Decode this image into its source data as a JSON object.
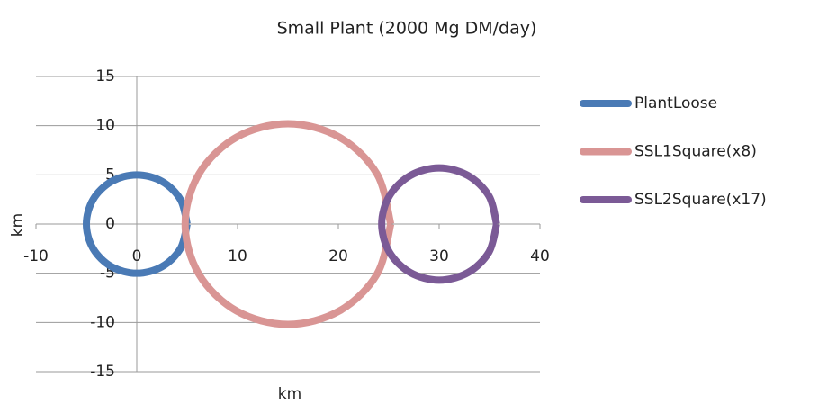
{
  "chart_data": {
    "type": "scatter",
    "title": "Small Plant (2000 Mg DM/day)",
    "x_label": "km",
    "y_label": "km",
    "xlim": [
      -10,
      40
    ],
    "xticks": [
      -10,
      0,
      10,
      20,
      30,
      40
    ],
    "ylim": [
      -15,
      15
    ],
    "yticks": [
      -15,
      -10,
      -5,
      0,
      5,
      10,
      15
    ],
    "grid": true,
    "legend": "right",
    "series": [
      {
        "name": "PlantLoose",
        "color": "#4a7ab5",
        "x": [
          5,
          4.33,
          2.5,
          0,
          -2.5,
          -4.33,
          -5,
          -4.33,
          -2.5,
          0,
          2.5,
          4.33,
          5
        ],
        "values": [
          0,
          2.5,
          4.33,
          5,
          4.33,
          2.5,
          0,
          -2.5,
          -4.33,
          -5,
          -4.33,
          -2.5,
          0
        ]
      },
      {
        "name": "SSL1Square(x8)",
        "color": "#d99594",
        "x": [
          25.2,
          23.83,
          20.1,
          15,
          9.9,
          6.17,
          4.8,
          6.17,
          9.9,
          15,
          20.1,
          23.83,
          25.2
        ],
        "values": [
          0,
          5.1,
          8.83,
          10.2,
          8.83,
          5.1,
          0,
          -5.1,
          -8.83,
          -10.2,
          -8.83,
          -5.1,
          0
        ]
      },
      {
        "name": "SSL2Square(x17)",
        "color": "#7b5a96",
        "x": [
          35.7,
          34.94,
          32.85,
          30,
          27.15,
          25.06,
          24.3,
          25.06,
          27.15,
          30,
          32.85,
          34.94,
          35.7
        ],
        "values": [
          0,
          2.85,
          4.94,
          5.7,
          4.94,
          2.85,
          0,
          -2.85,
          -4.94,
          -5.7,
          -4.94,
          -2.85,
          0
        ]
      }
    ]
  }
}
